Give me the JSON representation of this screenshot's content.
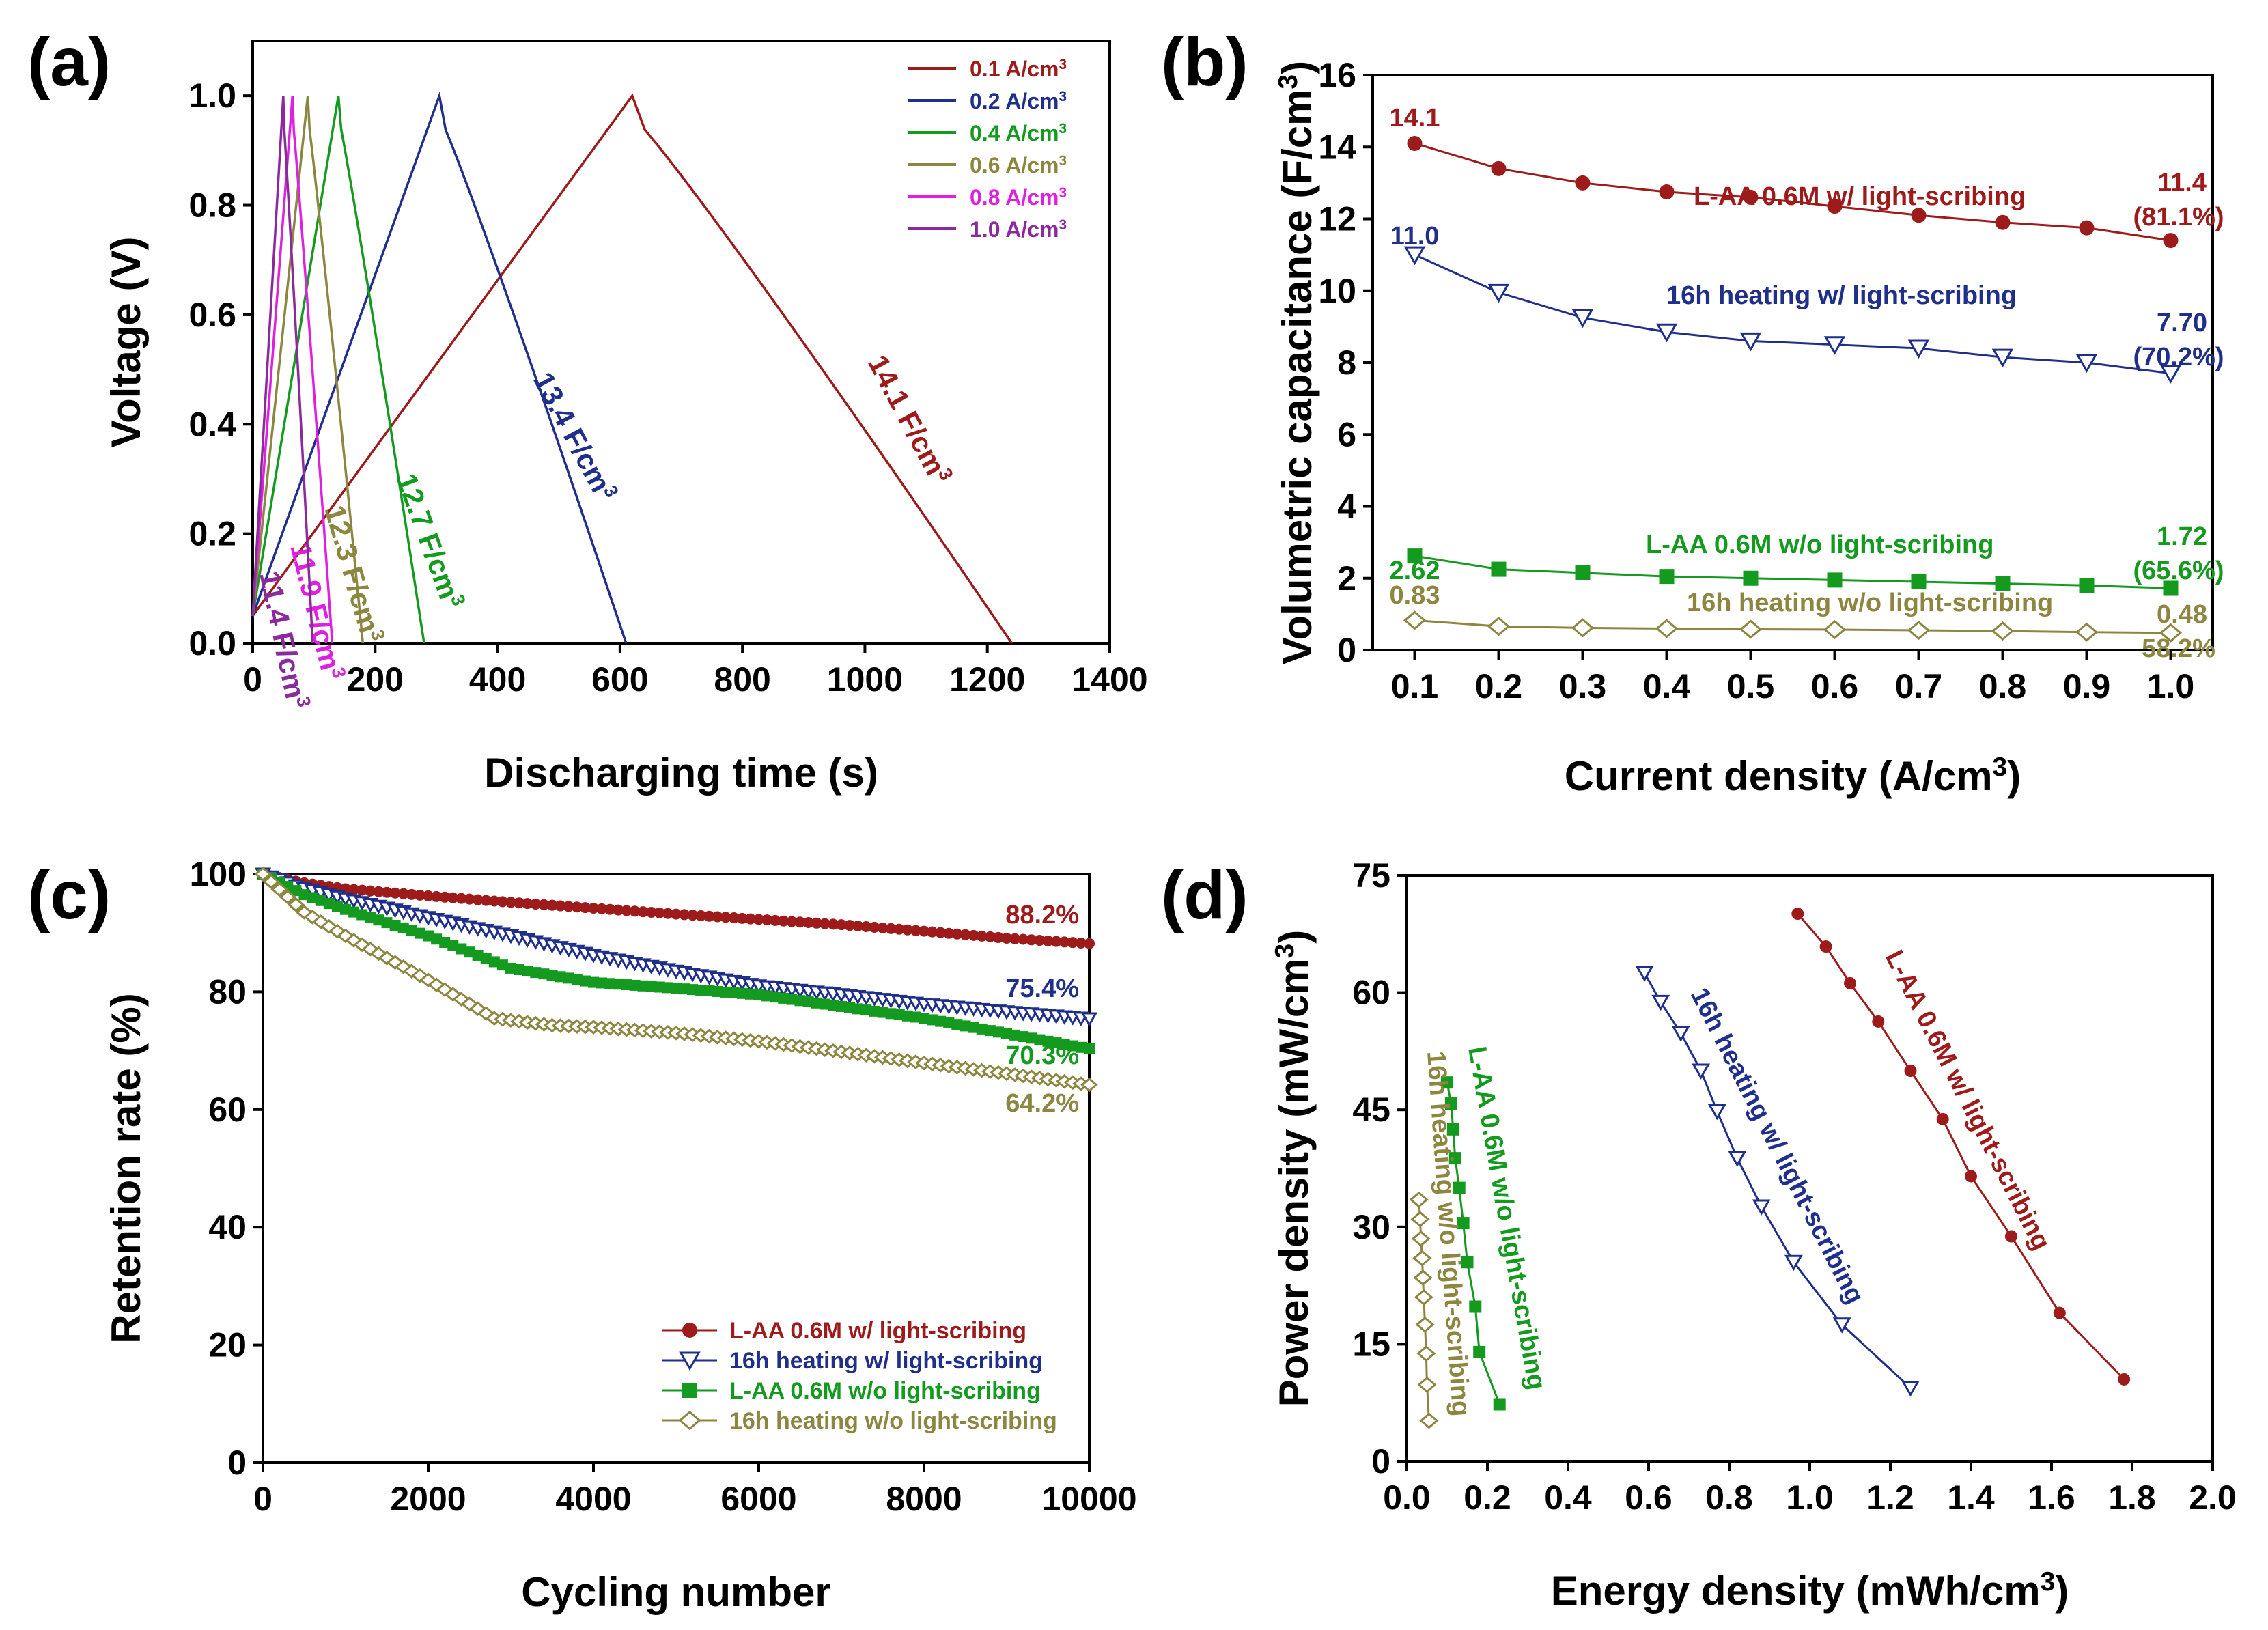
{
  "colors": {
    "red": "#9e1b1b",
    "blue": "#1f2f8a",
    "green": "#139a1f",
    "olive": "#8c8640",
    "magenta": "#e020e0",
    "purple": "#8a2a9c"
  },
  "chart_data": [
    {
      "id": "a",
      "panel_label": "(a)",
      "type": "line",
      "xlabel": "Discharging time (s)",
      "ylabel": "Voltage (V)",
      "xlim": [
        0,
        1400
      ],
      "ylim": [
        0,
        1.1
      ],
      "xticks": [
        "0",
        "200",
        "400",
        "600",
        "800",
        "1000",
        "1200",
        "1400"
      ],
      "yticks": [
        "0.0",
        "0.2",
        "0.4",
        "0.6",
        "0.8",
        "1.0"
      ],
      "legend_position": "top-right",
      "series": [
        {
          "name": "0.1 A/cm",
          "sup": "3",
          "color_key": "red",
          "peak_time": 620,
          "end_time": 1240,
          "label": "14.1 F/cm",
          "label_sup": "3"
        },
        {
          "name": "0.2 A/cm",
          "sup": "3",
          "color_key": "blue",
          "peak_time": 305,
          "end_time": 610,
          "label": "13.4 F/cm",
          "label_sup": "3"
        },
        {
          "name": "0.4 A/cm",
          "sup": "3",
          "color_key": "green",
          "peak_time": 140,
          "end_time": 280,
          "label": "12.7 F/cm",
          "label_sup": "3"
        },
        {
          "name": "0.6 A/cm",
          "sup": "3",
          "color_key": "olive",
          "peak_time": 90,
          "end_time": 180,
          "label": "12.3 F/cm",
          "label_sup": "3"
        },
        {
          "name": "0.8 A/cm",
          "sup": "3",
          "color_key": "magenta",
          "peak_time": 65,
          "end_time": 130,
          "label": "11.9 F/cm",
          "label_sup": "3"
        },
        {
          "name": "1.0 A/cm",
          "sup": "3",
          "color_key": "purple",
          "peak_time": 50,
          "end_time": 98,
          "label": "11.4 F/cm",
          "label_sup": "3"
        }
      ]
    },
    {
      "id": "b",
      "panel_label": "(b)",
      "type": "line",
      "xlabel": "Current density (A/cm",
      "xlabel_sup": "3",
      "xlabel_end": ")",
      "ylabel": "Volumetric capacitance (F/cm",
      "ylabel_sup": "3",
      "ylabel_end": ")",
      "xlim": [
        0.05,
        1.05
      ],
      "ylim": [
        0,
        16
      ],
      "xticks": [
        "0.1",
        "0.2",
        "0.3",
        "0.4",
        "0.5",
        "0.6",
        "0.7",
        "0.8",
        "0.9",
        "1.0"
      ],
      "yticks": [
        "0",
        "2",
        "4",
        "6",
        "8",
        "10",
        "12",
        "14",
        "16"
      ],
      "x": [
        0.1,
        0.2,
        0.3,
        0.4,
        0.5,
        0.6,
        0.7,
        0.8,
        0.9,
        1.0
      ],
      "series": [
        {
          "name": "L-AA 0.6M w/ light-scribing",
          "color_key": "red",
          "marker": "circle",
          "values": [
            14.1,
            13.4,
            13.0,
            12.75,
            12.6,
            12.35,
            12.1,
            11.9,
            11.75,
            11.4
          ],
          "start_label": "14.1",
          "end_label": "11.4",
          "end_pct": "(81.1%)"
        },
        {
          "name": "16h heating w/ light-scribing",
          "color_key": "blue",
          "marker": "triangle-down",
          "values": [
            11.0,
            9.95,
            9.25,
            8.85,
            8.6,
            8.5,
            8.4,
            8.15,
            8.0,
            7.7
          ],
          "start_label": "11.0",
          "end_label": "7.70",
          "end_pct": "(70.2%)"
        },
        {
          "name": "L-AA 0.6M w/o light-scribing",
          "color_key": "green",
          "marker": "square",
          "values": [
            2.62,
            2.25,
            2.15,
            2.05,
            2.0,
            1.95,
            1.9,
            1.85,
            1.8,
            1.72
          ],
          "start_label": "2.62",
          "end_label": "1.72",
          "end_pct": "(65.6%)"
        },
        {
          "name": "16h heating w/o light-scribing",
          "color_key": "olive",
          "marker": "diamond",
          "values": [
            0.83,
            0.66,
            0.62,
            0.6,
            0.58,
            0.57,
            0.55,
            0.53,
            0.5,
            0.48
          ],
          "start_label": "0.83",
          "end_label": "0.48",
          "end_pct": "58.2%"
        }
      ]
    },
    {
      "id": "c",
      "panel_label": "(c)",
      "type": "line",
      "xlabel": "Cycling number",
      "ylabel": "Retention rate (%)",
      "xlim": [
        0,
        10000
      ],
      "ylim": [
        0,
        100
      ],
      "xticks": [
        "0",
        "2000",
        "4000",
        "6000",
        "8000",
        "10000"
      ],
      "yticks": [
        "0",
        "20",
        "40",
        "60",
        "80",
        "100"
      ],
      "legend_position": "bottom-right",
      "series": [
        {
          "name": "L-AA 0.6M w/ light-scribing",
          "color_key": "red",
          "marker": "circle",
          "x": [
            0,
            500,
            1000,
            2000,
            3000,
            4000,
            5000,
            6000,
            7000,
            8000,
            9000,
            10000
          ],
          "y": [
            100,
            98.5,
            97.5,
            96.3,
            95.2,
            94.2,
            93.2,
            92.3,
            91.4,
            90.3,
            89.1,
            88.2
          ],
          "end_label": "88.2%"
        },
        {
          "name": "16h heating w/ light-scribing",
          "color_key": "blue",
          "marker": "triangle-down",
          "x": [
            0,
            500,
            1000,
            2000,
            3000,
            4000,
            5000,
            6000,
            7000,
            8000,
            9000,
            10000
          ],
          "y": [
            100,
            97.5,
            95.8,
            92.6,
            89.5,
            86.2,
            83.5,
            81.0,
            79.5,
            77.9,
            76.6,
            75.4
          ],
          "end_label": "75.4%"
        },
        {
          "name": "L-AA 0.6M w/o light-scribing",
          "color_key": "green",
          "marker": "square",
          "x": [
            0,
            500,
            1000,
            2000,
            3000,
            4000,
            5000,
            6000,
            7000,
            8000,
            9000,
            10000
          ],
          "y": [
            100,
            96.5,
            94.0,
            89.5,
            84.0,
            81.6,
            80.6,
            79.5,
            77.5,
            75.5,
            72.9,
            70.3
          ],
          "end_label": "70.3%"
        },
        {
          "name": "16h heating w/o light-scribing",
          "color_key": "olive",
          "marker": "diamond",
          "x": [
            0,
            500,
            1000,
            2000,
            2800,
            3500,
            4000,
            5000,
            6000,
            7000,
            8000,
            9000,
            10000
          ],
          "y": [
            100,
            93.5,
            89.5,
            82.0,
            75.5,
            74.3,
            74.0,
            73.0,
            71.6,
            69.8,
            67.9,
            66.1,
            64.2
          ],
          "end_label": "64.2%"
        }
      ]
    },
    {
      "id": "d",
      "panel_label": "(d)",
      "type": "line",
      "xlabel": "Energy density (mWh/cm",
      "xlabel_sup": "3",
      "xlabel_end": ")",
      "ylabel": "Power density (mW/cm",
      "ylabel_sup": "3",
      "ylabel_end": ")",
      "xlim": [
        0,
        2.0
      ],
      "ylim": [
        0,
        75
      ],
      "xticks": [
        "0.0",
        "0.2",
        "0.4",
        "0.6",
        "0.8",
        "1.0",
        "1.2",
        "1.4",
        "1.6",
        "1.8",
        "2.0"
      ],
      "yticks": [
        "0",
        "15",
        "30",
        "45",
        "60",
        "75"
      ],
      "series": [
        {
          "name": "L-AA 0.6M w/ light-scribing",
          "color_key": "red",
          "marker": "circle",
          "x": [
            0.97,
            1.04,
            1.1,
            1.17,
            1.25,
            1.33,
            1.4,
            1.5,
            1.62,
            1.78
          ],
          "y": [
            70.1,
            65.9,
            61.2,
            56.3,
            50.0,
            43.8,
            36.5,
            28.8,
            19.0,
            10.5
          ]
        },
        {
          "name": "16h heating w/ light-scribing",
          "color_key": "blue",
          "marker": "triangle-down",
          "x": [
            0.59,
            0.63,
            0.68,
            0.73,
            0.77,
            0.82,
            0.88,
            0.96,
            1.08,
            1.25
          ],
          "y": [
            62.5,
            58.8,
            54.8,
            50.0,
            44.8,
            38.8,
            32.6,
            25.5,
            17.5,
            9.4
          ]
        },
        {
          "name": "L-AA 0.6M w/o light-scribing",
          "color_key": "green",
          "marker": "square",
          "x": [
            0.1,
            0.11,
            0.115,
            0.12,
            0.13,
            0.14,
            0.15,
            0.17,
            0.18,
            0.23
          ],
          "y": [
            48.5,
            45.8,
            42.5,
            38.8,
            35.0,
            30.5,
            25.5,
            19.8,
            14.0,
            7.3
          ]
        },
        {
          "name": "16h heating w/o light-scribing",
          "color_key": "olive",
          "marker": "diamond",
          "x": [
            0.03,
            0.033,
            0.035,
            0.038,
            0.04,
            0.042,
            0.045,
            0.048,
            0.05,
            0.055
          ],
          "y": [
            33.5,
            31.0,
            28.5,
            26.0,
            23.5,
            21.0,
            17.5,
            13.8,
            9.8,
            5.2
          ]
        }
      ]
    }
  ]
}
